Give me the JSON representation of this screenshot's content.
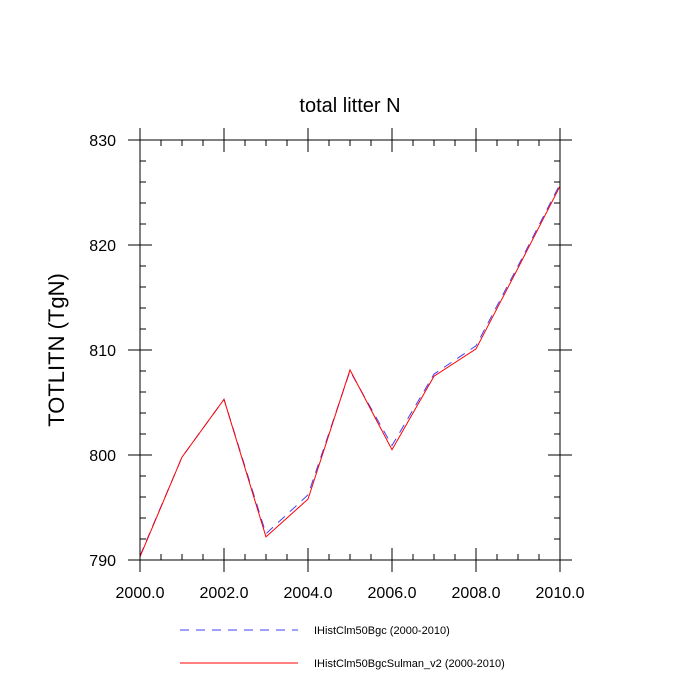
{
  "chart_data": {
    "type": "line",
    "title": "total litter N",
    "xlabel": "",
    "ylabel": "TOTLITN  (TgN)",
    "xlim": [
      2000,
      2010
    ],
    "ylim": [
      790,
      830
    ],
    "x_ticks": [
      2000,
      2002,
      2004,
      2006,
      2008,
      2010
    ],
    "x_tick_labels": [
      "2000.0",
      "2002.0",
      "2004.0",
      "2006.0",
      "2008.0",
      "2010.0"
    ],
    "y_ticks": [
      790,
      800,
      810,
      820,
      830
    ],
    "y_tick_labels": [
      "790",
      "800",
      "810",
      "820",
      "830"
    ],
    "grid": false,
    "legend_position": "bottom",
    "series": [
      {
        "name": "IHistClm50Bgc (2000-2010)",
        "color": "#4040ff",
        "style": "dashed",
        "x": [
          2000,
          2001,
          2002,
          2003,
          2004,
          2005,
          2006,
          2007,
          2008,
          2009,
          2010
        ],
        "y": [
          790.4,
          799.8,
          805.3,
          792.5,
          796.2,
          808.0,
          800.9,
          807.7,
          810.4,
          818.0,
          825.8
        ]
      },
      {
        "name": "IHistClm50BgcSulman_v2 (2000-2010)",
        "color": "#ff0000",
        "style": "solid",
        "x": [
          2000,
          2001,
          2002,
          2003,
          2004,
          2005,
          2006,
          2007,
          2008,
          2009,
          2010
        ],
        "y": [
          790.3,
          799.8,
          805.3,
          792.2,
          795.8,
          808.1,
          800.5,
          807.5,
          810.1,
          817.8,
          825.6
        ]
      }
    ]
  }
}
